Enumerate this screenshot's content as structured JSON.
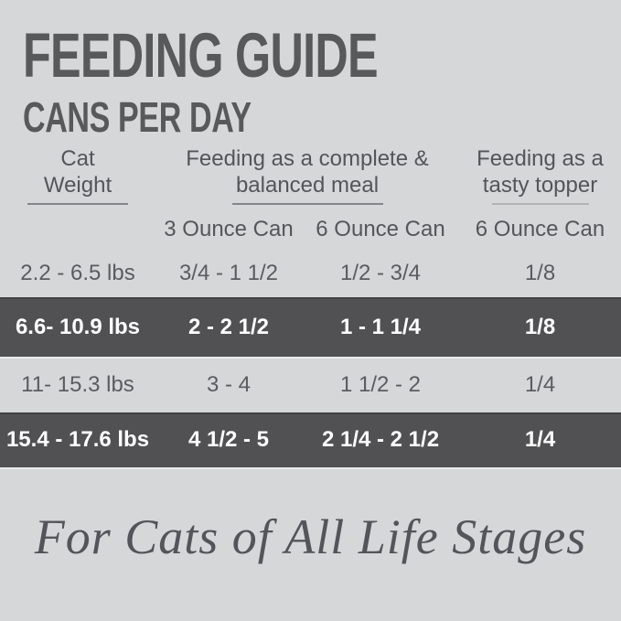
{
  "title": {
    "line1": "FEEDING GUIDE",
    "line2": "CANS PER DAY"
  },
  "table": {
    "header": {
      "cat_weight": {
        "line1": "Cat",
        "line2": "Weight"
      },
      "complete_meal": {
        "line1": "Feeding as a complete &",
        "line2": "balanced meal"
      },
      "tasty_topper": {
        "line1": "Feeding as a",
        "line2": "tasty topper"
      }
    },
    "subheaders": {
      "col2": "3 Ounce Can",
      "col3": "6 Ounce Can",
      "col4": "6 Ounce Can"
    },
    "rows": [
      {
        "weight": "2.2 - 6.5 lbs",
        "can3": "3/4 - 1 1/2",
        "can6": "1/2 - 3/4",
        "topper": "1/8"
      },
      {
        "weight": "6.6- 10.9 lbs",
        "can3": "2 - 2 1/2",
        "can6": "1 - 1 1/4",
        "topper": "1/8"
      },
      {
        "weight": "11- 15.3 lbs",
        "can3": "3 - 4",
        "can6": "1 1/2 - 2",
        "topper": "1/4"
      },
      {
        "weight": "15.4 - 17.6 lbs",
        "can3": "4 1/2 - 5",
        "can6": "2 1/4 - 2 1/2",
        "topper": "1/4"
      }
    ]
  },
  "footer": {
    "tagline": "For Cats of All Life Stages"
  },
  "colors": {
    "background": "#d6d7d8",
    "highlight_band": "#515153",
    "title_text": "#58595b",
    "body_text": "#55565a",
    "band_text": "#ffffff"
  },
  "chart_data": {
    "type": "table",
    "title": "FEEDING GUIDE",
    "subtitle": "CANS PER DAY",
    "column_groups": [
      "Cat Weight",
      "Feeding as a complete & balanced meal",
      "Feeding as a tasty topper"
    ],
    "columns": [
      "Cat Weight",
      "3 Ounce Can (complete & balanced meal)",
      "6 Ounce Can (complete & balanced meal)",
      "6 Ounce Can (tasty topper)"
    ],
    "rows": [
      [
        "2.2 - 6.5 lbs",
        "3/4 - 1 1/2",
        "1/2 - 3/4",
        "1/8"
      ],
      [
        "6.6- 10.9 lbs",
        "2 - 2 1/2",
        "1 - 1 1/4",
        "1/8"
      ],
      [
        "11- 15.3 lbs",
        "3 - 4",
        "1 1/2 - 2",
        "1/4"
      ],
      [
        "15.4 - 17.6 lbs",
        "4 1/2 - 5",
        "2 1/4 - 2 1/2",
        "1/4"
      ]
    ],
    "highlighted_row_indices": [
      1,
      3
    ],
    "footnote": "For Cats of All Life Stages"
  }
}
